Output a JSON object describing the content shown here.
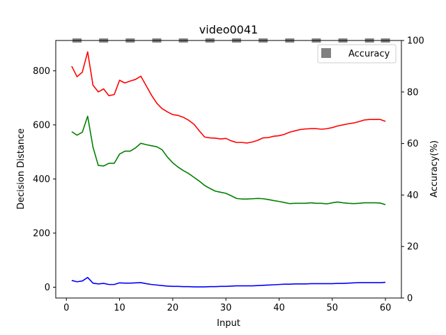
{
  "chart_data": {
    "type": "line",
    "title": "video0041",
    "xlabel": "Input",
    "ylabel": "Decision Distance",
    "y2label": "Accuracy(%)",
    "xlim": [
      -2,
      63
    ],
    "ylim": [
      -40,
      912
    ],
    "y2lim": [
      0,
      100
    ],
    "xticks": [
      0,
      10,
      20,
      30,
      40,
      50,
      60
    ],
    "yticks": [
      0,
      200,
      400,
      600,
      800
    ],
    "y2ticks": [
      0,
      20,
      40,
      60,
      80,
      100
    ],
    "grid": false,
    "legend_position": "top-right",
    "x": [
      1,
      2,
      3,
      4,
      5,
      6,
      7,
      8,
      9,
      10,
      11,
      12,
      13,
      14,
      15,
      16,
      17,
      18,
      19,
      20,
      21,
      22,
      23,
      24,
      25,
      26,
      27,
      28,
      29,
      30,
      31,
      32,
      33,
      34,
      35,
      36,
      37,
      38,
      39,
      40,
      41,
      42,
      43,
      44,
      45,
      46,
      47,
      48,
      49,
      50,
      51,
      52,
      53,
      54,
      55,
      56,
      57,
      58,
      59,
      60
    ],
    "series": [
      {
        "color": "#ff0000",
        "values": [
          817,
          778,
          795,
          870,
          747,
          722,
          733,
          708,
          712,
          765,
          755,
          762,
          768,
          780,
          745,
          710,
          680,
          660,
          648,
          638,
          635,
          628,
          617,
          602,
          578,
          555,
          552,
          551,
          548,
          550,
          541,
          535,
          535,
          533,
          537,
          543,
          552,
          553,
          558,
          560,
          565,
          573,
          578,
          583,
          585,
          586,
          586,
          584,
          586,
          590,
          596,
          600,
          604,
          607,
          612,
          618,
          620,
          620,
          620,
          613
        ]
      },
      {
        "color": "#008000",
        "values": [
          575,
          562,
          573,
          632,
          518,
          450,
          448,
          458,
          458,
          492,
          503,
          503,
          515,
          532,
          527,
          523,
          519,
          508,
          481,
          460,
          444,
          431,
          420,
          406,
          392,
          376,
          365,
          355,
          351,
          347,
          338,
          328,
          326,
          326,
          327,
          328,
          327,
          324,
          320,
          317,
          313,
          309,
          310,
          310,
          310,
          312,
          310,
          310,
          308,
          312,
          315,
          312,
          310,
          309,
          310,
          312,
          312,
          312,
          311,
          305
        ]
      },
      {
        "color": "#0000ff",
        "values": [
          25,
          20,
          23,
          36,
          15,
          12,
          14,
          10,
          10,
          16,
          15,
          15,
          16,
          17,
          13,
          10,
          8,
          6,
          4,
          3,
          3,
          2,
          2,
          1,
          1,
          1,
          2,
          2,
          3,
          3,
          4,
          5,
          5,
          5,
          5,
          6,
          7,
          8,
          9,
          10,
          11,
          11,
          12,
          12,
          12,
          13,
          13,
          13,
          13,
          13,
          14,
          14,
          15,
          16,
          17,
          17,
          17,
          17,
          17,
          18
        ]
      }
    ],
    "accuracy_series": {
      "name": "Accuracy",
      "color": "#808080",
      "x": [
        2,
        7,
        12,
        17,
        22,
        27,
        32,
        37,
        42,
        47,
        52,
        57,
        60
      ],
      "values": [
        100,
        100,
        100,
        100,
        100,
        100,
        100,
        100,
        100,
        100,
        100,
        100,
        100
      ]
    }
  }
}
